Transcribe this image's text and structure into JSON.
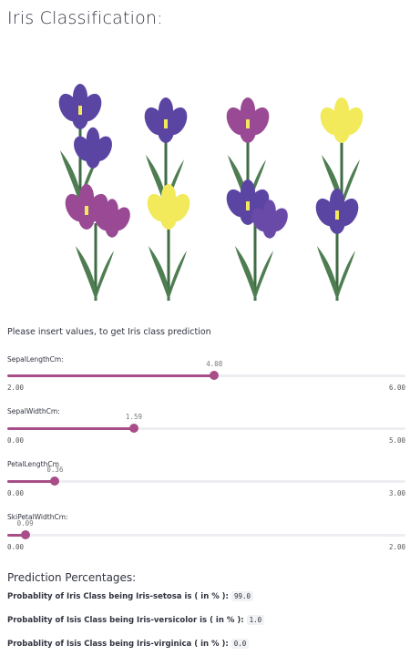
{
  "page": {
    "title": "Iris Classification:"
  },
  "form": {
    "prompt": "Please insert values, to get Iris class prediction"
  },
  "sliders": [
    {
      "label": "SepalLengthCm:",
      "value": "4.08",
      "min": "2.00",
      "max": "6.00",
      "fraction": 0.52
    },
    {
      "label": "SepalWidthCm:",
      "value": "1.59",
      "min": "0.00",
      "max": "5.00",
      "fraction": 0.318
    },
    {
      "label": "PetalLengthCm",
      "value": "0.36",
      "min": "0.00",
      "max": "3.00",
      "fraction": 0.12
    },
    {
      "label": "SkiPetalWidthCm:",
      "value": "0.09",
      "min": "0.00",
      "max": "2.00",
      "fraction": 0.045
    }
  ],
  "predictions": {
    "title": "Prediction Percentages:",
    "items": [
      {
        "label": "Probablity of Iris Class being Iris-setosa is ( in % ):",
        "value": "99.0"
      },
      {
        "label": "Probablity of Isis Class being Iris-versicolor is ( in % ):",
        "value": "1.0"
      },
      {
        "label": "Probablity of Isis Class being Iris-virginica ( in % ):",
        "value": "0.0"
      }
    ]
  },
  "colors": {
    "accent": "#a84d88",
    "violet": "#5b45a3",
    "magenta": "#9a4a95",
    "yellow": "#f2ea5a",
    "stem": "#3f6b45"
  },
  "image": {
    "icon": "iris-flowers-illustration"
  }
}
